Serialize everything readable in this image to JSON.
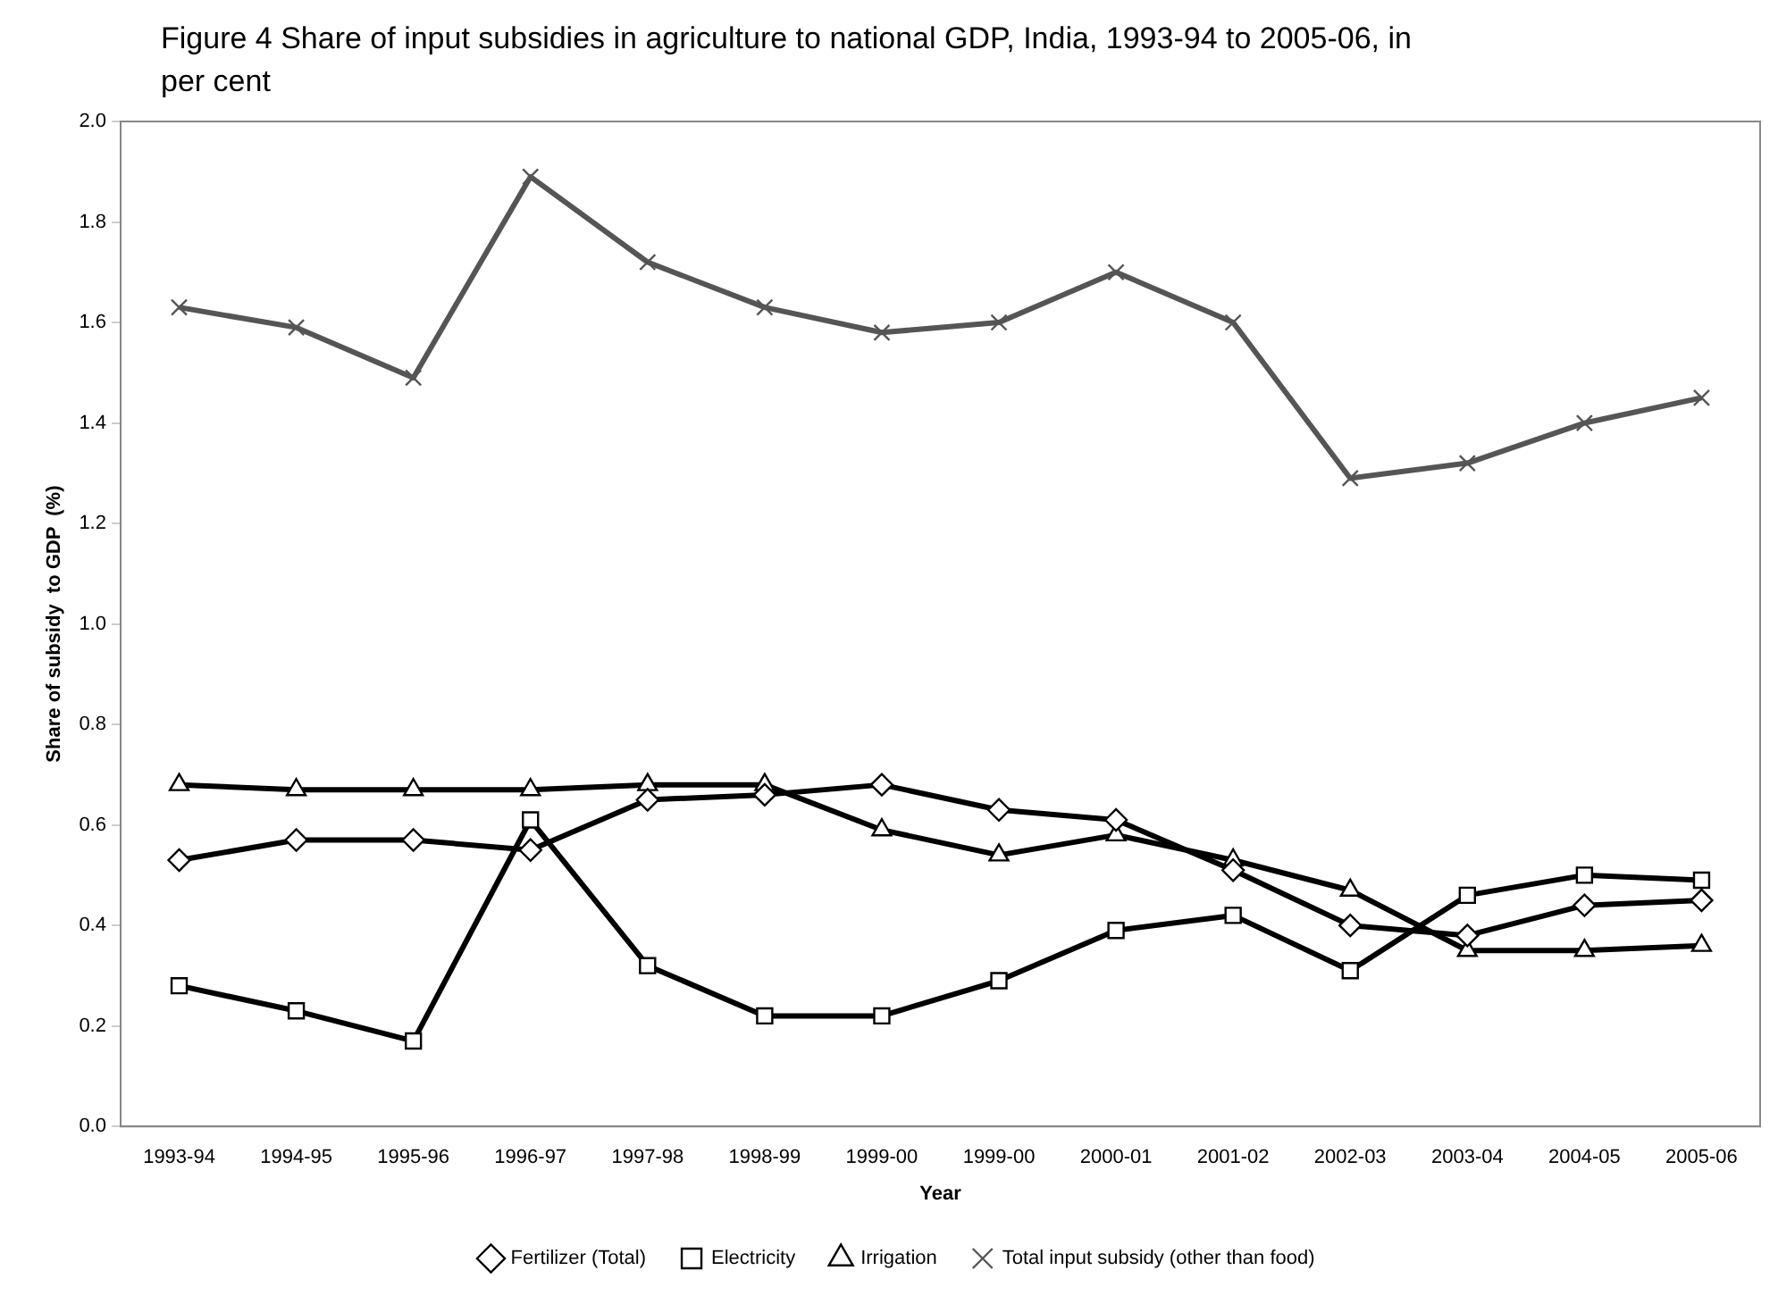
{
  "chart_data": {
    "type": "line",
    "title": "Figure 4 Share of input subsidies in agriculture to national GDP, India, 1993-94 to 2005-06, in per cent",
    "xlabel": "Year",
    "ylabel": "Share of subsidy  to GDP  (%)",
    "categories": [
      "1993-94",
      "1994-95",
      "1995-96",
      "1996-97",
      "1997-98",
      "1998-99",
      "1999-00",
      "1999-00",
      "2000-01",
      "2001-02",
      "2002-03",
      "2003-04",
      "2004-05",
      "2005-06"
    ],
    "series": [
      {
        "name": "Fertilizer (Total)",
        "color": "#000000",
        "marker": "diamond",
        "values": [
          0.53,
          0.57,
          0.57,
          0.55,
          0.65,
          0.66,
          0.68,
          0.63,
          0.61,
          0.51,
          0.4,
          0.38,
          0.44,
          0.45
        ]
      },
      {
        "name": "Electricity",
        "color": "#000000",
        "marker": "square",
        "values": [
          0.28,
          0.23,
          0.17,
          0.61,
          0.32,
          0.22,
          0.22,
          0.29,
          0.39,
          0.42,
          0.31,
          0.46,
          0.5,
          0.49
        ]
      },
      {
        "name": "Irrigation",
        "color": "#000000",
        "marker": "triangle",
        "values": [
          0.68,
          0.67,
          0.67,
          0.67,
          0.68,
          0.68,
          0.59,
          0.54,
          0.58,
          0.53,
          0.47,
          0.35,
          0.35,
          0.36
        ]
      },
      {
        "name": "Total input subsidy (other than food)",
        "color": "#555555",
        "marker": "cross",
        "values": [
          1.63,
          1.59,
          1.49,
          1.89,
          1.72,
          1.63,
          1.58,
          1.6,
          1.7,
          1.6,
          1.29,
          1.32,
          1.4,
          1.45
        ]
      }
    ],
    "ylim": [
      0,
      2
    ],
    "yticks": [
      {
        "value": 0,
        "label": "0.0"
      },
      {
        "value": 0.2,
        "label": "0.2"
      },
      {
        "value": 0.4,
        "label": "0.4"
      },
      {
        "value": 0.6,
        "label": "0.6"
      },
      {
        "value": 0.8,
        "label": "0.8"
      },
      {
        "value": 1,
        "label": "1.0"
      },
      {
        "value": 1.2,
        "label": "1.2"
      },
      {
        "value": 1.4,
        "label": "1.4"
      },
      {
        "value": 1.6,
        "label": "1.6"
      },
      {
        "value": 1.8,
        "label": "1.8"
      },
      {
        "value": 2,
        "label": "2.0"
      }
    ],
    "grid": false,
    "legend": "bottom",
    "line_style": "solid"
  }
}
